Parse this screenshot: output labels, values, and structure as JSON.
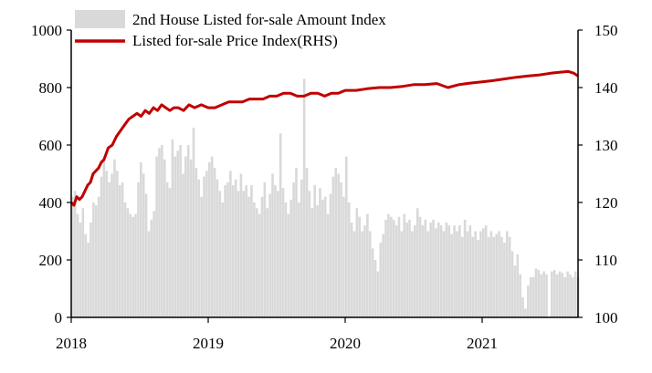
{
  "chart_data": {
    "type": "bar+line",
    "x_ticks": [
      "2018",
      "2019",
      "2020",
      "2021"
    ],
    "y_left": {
      "ticks": [
        0,
        200,
        400,
        600,
        800,
        1000
      ],
      "range": [
        0,
        1000
      ]
    },
    "y_right": {
      "ticks": [
        100,
        110,
        120,
        130,
        140,
        150
      ],
      "range": [
        100,
        150
      ]
    },
    "colors": {
      "bars": "#d9d9d9",
      "line": "#c00000",
      "axis": "#000000"
    },
    "legend_position": "top-left",
    "series": [
      {
        "name": "2nd House Listed for-sale Amount Index",
        "kind": "bar",
        "axis": "left",
        "x_start": "2018",
        "step_weeks": 1,
        "values": [
          420,
          440,
          360,
          330,
          380,
          290,
          260,
          330,
          400,
          390,
          420,
          490,
          560,
          510,
          470,
          500,
          550,
          510,
          460,
          470,
          400,
          380,
          360,
          350,
          360,
          470,
          540,
          500,
          430,
          300,
          340,
          370,
          560,
          590,
          600,
          550,
          470,
          450,
          620,
          560,
          580,
          600,
          500,
          560,
          600,
          550,
          660,
          520,
          480,
          420,
          490,
          510,
          540,
          560,
          520,
          480,
          440,
          400,
          460,
          470,
          510,
          460,
          480,
          440,
          500,
          440,
          460,
          420,
          460,
          400,
          380,
          360,
          420,
          470,
          380,
          430,
          500,
          460,
          440,
          640,
          450,
          400,
          360,
          410,
          470,
          520,
          400,
          480,
          830,
          520,
          440,
          380,
          460,
          390,
          450,
          410,
          420,
          360,
          430,
          490,
          520,
          500,
          470,
          420,
          560,
          400,
          330,
          300,
          380,
          350,
          300,
          320,
          360,
          300,
          240,
          200,
          160,
          260,
          290,
          340,
          360,
          350,
          340,
          320,
          350,
          300,
          360,
          330,
          340,
          300,
          320,
          380,
          350,
          320,
          340,
          300,
          330,
          340,
          310,
          330,
          320,
          300,
          330,
          320,
          290,
          320,
          300,
          320,
          280,
          340,
          300,
          320,
          280,
          300,
          270,
          300,
          310,
          320,
          280,
          300,
          280,
          290,
          300,
          280,
          260,
          300,
          280,
          230,
          180,
          220,
          150,
          70,
          30,
          110,
          140,
          140,
          170,
          165,
          150,
          160,
          150,
          0,
          160,
          165,
          150,
          160,
          155,
          140,
          160,
          150,
          140,
          160,
          140,
          150,
          150,
          130,
          150,
          120,
          130,
          130,
          140,
          140,
          140,
          110,
          150
        ]
      },
      {
        "name": "Listed for-sale Price Index(RHS)",
        "kind": "line",
        "axis": "right",
        "x": [
          2018.0,
          2018.02,
          2018.04,
          2018.06,
          2018.08,
          2018.1,
          2018.12,
          2018.14,
          2018.16,
          2018.18,
          2018.2,
          2018.22,
          2018.24,
          2018.27,
          2018.3,
          2018.33,
          2018.36,
          2018.39,
          2018.42,
          2018.45,
          2018.48,
          2018.51,
          2018.54,
          2018.57,
          2018.6,
          2018.63,
          2018.66,
          2018.69,
          2018.72,
          2018.75,
          2018.78,
          2018.82,
          2018.86,
          2018.9,
          2018.95,
          2019.0,
          2019.05,
          2019.1,
          2019.15,
          2019.2,
          2019.25,
          2019.3,
          2019.35,
          2019.4,
          2019.45,
          2019.5,
          2019.55,
          2019.6,
          2019.65,
          2019.7,
          2019.75,
          2019.8,
          2019.85,
          2019.9,
          2019.95,
          2020.0,
          2020.08,
          2020.16,
          2020.25,
          2020.33,
          2020.42,
          2020.5,
          2020.58,
          2020.67,
          2020.75,
          2020.83,
          2020.92,
          2021.0,
          2021.08,
          2021.16,
          2021.25,
          2021.33,
          2021.42,
          2021.5,
          2021.58,
          2021.63,
          2021.67,
          2021.7
        ],
        "y": [
          120,
          119.5,
          121,
          120.5,
          121,
          122,
          123,
          123.5,
          125,
          125.5,
          126,
          127,
          127.5,
          129.5,
          130,
          131.5,
          132.5,
          133.5,
          134.5,
          135,
          135.5,
          135,
          136,
          135.5,
          136.5,
          136,
          137,
          136.5,
          136,
          136.5,
          136.5,
          136,
          137,
          136.5,
          137,
          136.5,
          136.5,
          137,
          137.5,
          137.5,
          137.5,
          138,
          138,
          138,
          138.5,
          138.5,
          139,
          139,
          138.5,
          138.5,
          139,
          139,
          138.5,
          139,
          139,
          139.5,
          139.5,
          139.8,
          140,
          140,
          140.2,
          140.5,
          140.5,
          140.7,
          140,
          140.5,
          140.8,
          141,
          141.2,
          141.5,
          141.8,
          142,
          142.2,
          142.5,
          142.7,
          142.8,
          142.5,
          142
        ]
      }
    ]
  }
}
